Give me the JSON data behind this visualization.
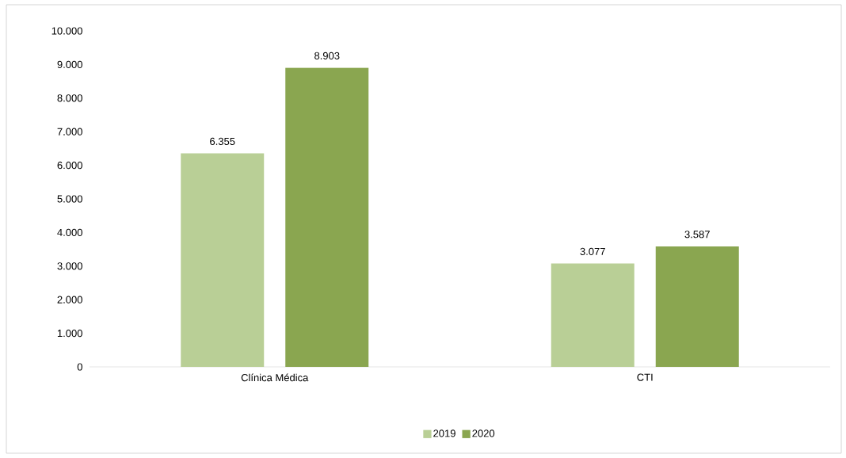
{
  "chart_data": {
    "type": "bar",
    "categories": [
      "Clínica Médica",
      "CTI"
    ],
    "series": [
      {
        "name": "2019",
        "color": "#b9cf96",
        "values": [
          6355,
          3077
        ],
        "value_labels": [
          "6.355",
          "3.077"
        ]
      },
      {
        "name": "2020",
        "color": "#8aa650",
        "values": [
          8903,
          3587
        ],
        "value_labels": [
          "8.903",
          "3.587"
        ]
      }
    ],
    "ylim": [
      0,
      10000
    ],
    "yticks": [
      0,
      {
        "value": 1000,
        "label": "1.000"
      },
      {
        "value": 2000,
        "label": "2.000"
      },
      {
        "value": 3000,
        "label": "3.000"
      },
      {
        "value": 4000,
        "label": "4.000"
      },
      {
        "value": 5000,
        "label": "5.000"
      },
      {
        "value": 6000,
        "label": "6.000"
      },
      {
        "value": 7000,
        "label": "7.000"
      },
      {
        "value": 8000,
        "label": "8.000"
      },
      {
        "value": 9000,
        "label": "9.000"
      },
      {
        "value": 10000,
        "label": "10.000"
      }
    ],
    "legend": "bottom"
  }
}
